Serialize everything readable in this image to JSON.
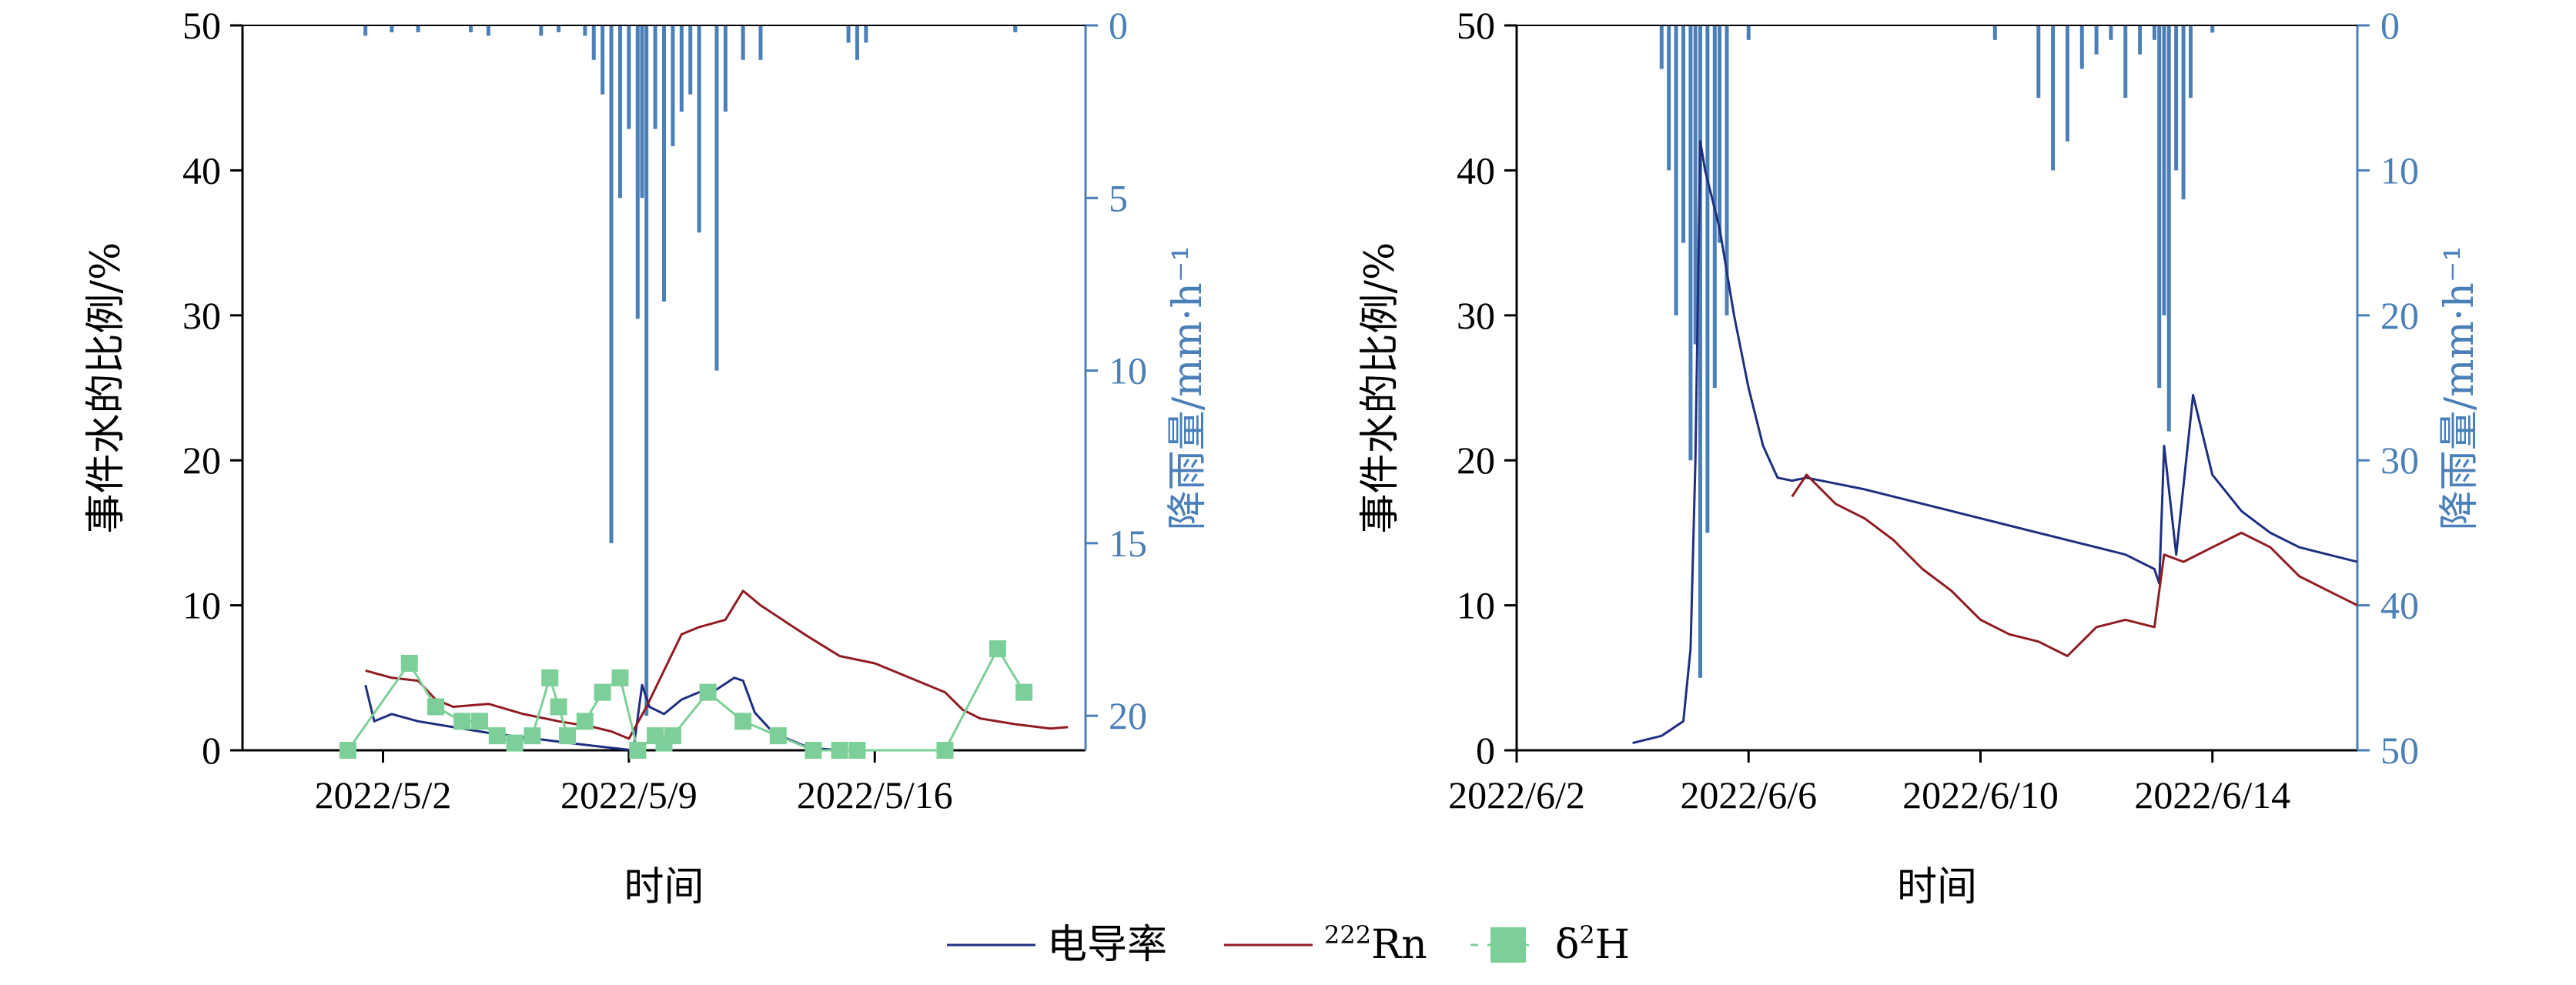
{
  "colors": {
    "conductivity": "#1f2f80",
    "radon": "#8f1d22",
    "isotope": "#7ccf98",
    "rain": "#4b7fb8",
    "axis": "#000000"
  },
  "legend": [
    {
      "key": "conductivity",
      "label": "电导率"
    },
    {
      "key": "radon",
      "label_sup": "222",
      "label": "Rn"
    },
    {
      "key": "isotope",
      "label_pre": "δ",
      "label_sup": "2",
      "label": "H"
    }
  ],
  "chart_data": [
    {
      "type": "line",
      "panel": "left",
      "xlabel": "时间",
      "ylabel": "事件水的比例/%",
      "y2label": "降雨量/mm·h⁻¹",
      "ylim": [
        0,
        50
      ],
      "y2lim": [
        21,
        0
      ],
      "y2_reversed": true,
      "xlim": [
        "2022-04-28",
        "2022-05-22"
      ],
      "xticks": [
        {
          "date": "2022-05-02",
          "label": "2022/5/2"
        },
        {
          "date": "2022-05-09",
          "label": "2022/5/9"
        },
        {
          "date": "2022-05-16",
          "label": "2022/5/16"
        }
      ],
      "yticks": [
        "0",
        "10",
        "20",
        "30",
        "40",
        "50"
      ],
      "y2ticks": [
        "0",
        "5",
        "10",
        "15",
        "20"
      ],
      "series": [
        {
          "key": "conductivity",
          "kind": "line",
          "x": [
            "2022-05-01 12:00",
            "2022-05-01 18:00",
            "2022-05-02 06:00",
            "2022-05-03 00:00",
            "2022-05-04 00:00",
            "2022-05-05 00:00",
            "2022-05-06 00:00",
            "2022-05-07 00:00",
            "2022-05-08 00:00",
            "2022-05-08 18:00",
            "2022-05-09 03:00",
            "2022-05-09 09:00",
            "2022-05-09 14:00",
            "2022-05-10 00:00",
            "2022-05-10 12:00",
            "2022-05-11 00:00",
            "2022-05-11 12:00",
            "2022-05-12 00:00",
            "2022-05-12 06:00",
            "2022-05-12 14:00",
            "2022-05-13 00:00",
            "2022-05-13 12:00",
            "2022-05-14 00:00",
            "2022-05-14 12:00",
            "2022-05-15 00:00"
          ],
          "y": [
            4.5,
            2.0,
            2.5,
            2.0,
            1.6,
            1.2,
            0.9,
            0.6,
            0.3,
            0.1,
            0.0,
            4.5,
            3.0,
            2.5,
            3.5,
            4.0,
            4.2,
            5.0,
            4.8,
            2.6,
            1.5,
            0.8,
            0.3,
            0.1,
            0.0
          ]
        },
        {
          "key": "radon",
          "kind": "line",
          "x": [
            "2022-05-01 12:00",
            "2022-05-02 06:00",
            "2022-05-03 00:00",
            "2022-05-03 12:00",
            "2022-05-04 00:00",
            "2022-05-05 00:00",
            "2022-05-06 00:00",
            "2022-05-07 00:00",
            "2022-05-08 00:00",
            "2022-05-08 12:00",
            "2022-05-09 00:00",
            "2022-05-09 12:00",
            "2022-05-10 00:00",
            "2022-05-10 12:00",
            "2022-05-11 00:00",
            "2022-05-11 18:00",
            "2022-05-12 06:00",
            "2022-05-12 18:00",
            "2022-05-13 12:00",
            "2022-05-14 00:00",
            "2022-05-15 00:00",
            "2022-05-16 00:00",
            "2022-05-17 00:00",
            "2022-05-18 00:00",
            "2022-05-18 12:00",
            "2022-05-19 00:00",
            "2022-05-20 00:00",
            "2022-05-21 00:00",
            "2022-05-21 12:00"
          ],
          "y": [
            5.5,
            5.0,
            4.8,
            3.5,
            3.0,
            3.2,
            2.5,
            2.0,
            1.6,
            1.3,
            0.8,
            3.0,
            5.5,
            8.0,
            8.5,
            9.0,
            11.0,
            10.0,
            8.8,
            8.0,
            6.5,
            6.0,
            5.0,
            4.0,
            2.8,
            2.2,
            1.8,
            1.5,
            1.6
          ]
        },
        {
          "key": "isotope",
          "kind": "line-marker",
          "x": [
            "2022-05-01 00:00",
            "2022-05-02 18:00",
            "2022-05-03 12:00",
            "2022-05-04 06:00",
            "2022-05-04 18:00",
            "2022-05-05 06:00",
            "2022-05-05 18:00",
            "2022-05-06 06:00",
            "2022-05-06 18:00",
            "2022-05-07 00:00",
            "2022-05-07 06:00",
            "2022-05-07 18:00",
            "2022-05-08 06:00",
            "2022-05-08 18:00",
            "2022-05-09 06:00",
            "2022-05-09 18:00",
            "2022-05-10 00:00",
            "2022-05-10 06:00",
            "2022-05-11 06:00",
            "2022-05-12 06:00",
            "2022-05-13 06:00",
            "2022-05-14 06:00",
            "2022-05-15 00:00",
            "2022-05-15 12:00",
            "2022-05-18 00:00",
            "2022-05-19 12:00",
            "2022-05-20 06:00"
          ],
          "y": [
            0.0,
            6.0,
            3.0,
            2.0,
            2.0,
            1.0,
            0.5,
            1.0,
            5.0,
            3.0,
            1.0,
            2.0,
            4.0,
            5.0,
            0.0,
            1.0,
            0.5,
            1.0,
            4.0,
            2.0,
            1.0,
            0.0,
            0.0,
            0.0,
            0.0,
            7.0,
            4.0
          ]
        },
        {
          "key": "rain",
          "kind": "bar",
          "axis": "y2",
          "x": [
            "2022-05-01 12:00",
            "2022-05-02 06:00",
            "2022-05-03 00:00",
            "2022-05-04 12:00",
            "2022-05-05 00:00",
            "2022-05-06 12:00",
            "2022-05-07 00:00",
            "2022-05-07 18:00",
            "2022-05-08 00:00",
            "2022-05-08 06:00",
            "2022-05-08 12:00",
            "2022-05-08 18:00",
            "2022-05-09 00:00",
            "2022-05-09 06:00",
            "2022-05-09 09:00",
            "2022-05-09 12:00",
            "2022-05-09 18:00",
            "2022-05-10 00:00",
            "2022-05-10 06:00",
            "2022-05-10 12:00",
            "2022-05-10 18:00",
            "2022-05-11 00:00",
            "2022-05-11 12:00",
            "2022-05-11 18:00",
            "2022-05-12 06:00",
            "2022-05-12 18:00",
            "2022-05-15 06:00",
            "2022-05-15 12:00",
            "2022-05-15 18:00",
            "2022-05-20 00:00"
          ],
          "y": [
            0.3,
            0.2,
            0.2,
            0.2,
            0.3,
            0.3,
            0.2,
            0.3,
            1.0,
            2.0,
            15.0,
            5.0,
            3.0,
            8.5,
            5.0,
            20.0,
            3.0,
            8.0,
            3.5,
            2.5,
            2.0,
            6.0,
            10.0,
            2.5,
            1.0,
            1.0,
            0.5,
            1.0,
            0.5,
            0.2
          ]
        }
      ]
    },
    {
      "type": "line",
      "panel": "right",
      "xlabel": "时间",
      "ylabel": "事件水的比例/%",
      "y2label": "降雨量/mm·h⁻¹",
      "ylim": [
        0,
        50
      ],
      "y2lim": [
        50,
        0
      ],
      "y2_reversed": true,
      "xlim": [
        "2022-06-02",
        "2022-06-16 12:00"
      ],
      "xticks": [
        {
          "date": "2022-06-02",
          "label": "2022/6/2"
        },
        {
          "date": "2022-06-06",
          "label": "2022/6/6"
        },
        {
          "date": "2022-06-10",
          "label": "2022/6/10"
        },
        {
          "date": "2022-06-14",
          "label": "2022/6/14"
        }
      ],
      "yticks": [
        "0",
        "10",
        "20",
        "30",
        "40",
        "50"
      ],
      "y2ticks": [
        "0",
        "10",
        "20",
        "30",
        "40",
        "50"
      ],
      "series": [
        {
          "key": "conductivity",
          "kind": "line",
          "x": [
            "2022-06-04 00:00",
            "2022-06-04 12:00",
            "2022-06-04 21:00",
            "2022-06-05 00:00",
            "2022-06-05 02:00",
            "2022-06-05 04:00",
            "2022-06-05 06:00",
            "2022-06-05 12:00",
            "2022-06-05 18:00",
            "2022-06-06 00:00",
            "2022-06-06 06:00",
            "2022-06-06 12:00",
            "2022-06-06 18:00",
            "2022-06-07 00:00",
            "2022-06-07 12:00",
            "2022-06-08 00:00",
            "2022-06-08 12:00",
            "2022-06-09 00:00",
            "2022-06-09 12:00",
            "2022-06-10 00:00",
            "2022-06-10 12:00",
            "2022-06-11 00:00",
            "2022-06-11 12:00",
            "2022-06-12 00:00",
            "2022-06-12 12:00",
            "2022-06-13 00:00",
            "2022-06-13 02:00",
            "2022-06-13 04:00",
            "2022-06-13 09:00",
            "2022-06-13 16:00",
            "2022-06-14 00:00",
            "2022-06-14 12:00",
            "2022-06-15 00:00",
            "2022-06-15 12:00",
            "2022-06-16 00:00",
            "2022-06-16 12:00"
          ],
          "y": [
            0.5,
            1.0,
            2.0,
            7.0,
            20.0,
            42.0,
            40.0,
            36.0,
            30.0,
            25.0,
            21.0,
            18.8,
            18.6,
            18.8,
            18.4,
            18.0,
            17.5,
            17.0,
            16.5,
            16.0,
            15.5,
            15.0,
            14.5,
            14.0,
            13.5,
            12.5,
            11.5,
            21.0,
            13.5,
            24.5,
            19.0,
            16.5,
            15.0,
            14.0,
            13.5,
            13.0
          ]
        },
        {
          "key": "radon",
          "kind": "line",
          "x": [
            "2022-06-06 18:00",
            "2022-06-07 00:00",
            "2022-06-07 12:00",
            "2022-06-08 00:00",
            "2022-06-08 12:00",
            "2022-06-09 00:00",
            "2022-06-09 12:00",
            "2022-06-10 00:00",
            "2022-06-10 12:00",
            "2022-06-11 00:00",
            "2022-06-11 12:00",
            "2022-06-12 00:00",
            "2022-06-12 12:00",
            "2022-06-13 00:00",
            "2022-06-13 04:00",
            "2022-06-13 12:00",
            "2022-06-14 00:00",
            "2022-06-14 12:00",
            "2022-06-15 00:00",
            "2022-06-15 12:00",
            "2022-06-16 00:00",
            "2022-06-16 12:00"
          ],
          "y": [
            17.5,
            19.0,
            17.0,
            16.0,
            14.5,
            12.5,
            11.0,
            9.0,
            8.0,
            7.5,
            6.5,
            8.5,
            9.0,
            8.5,
            13.5,
            13.0,
            14.0,
            15.0,
            14.0,
            12.0,
            11.0,
            10.0
          ]
        },
        {
          "key": "rain",
          "kind": "bar",
          "axis": "y2",
          "x": [
            "2022-06-04 12:00",
            "2022-06-04 15:00",
            "2022-06-04 18:00",
            "2022-06-04 21:00",
            "2022-06-05 00:00",
            "2022-06-05 02:00",
            "2022-06-05 04:00",
            "2022-06-05 07:00",
            "2022-06-05 10:00",
            "2022-06-05 12:00",
            "2022-06-05 15:00",
            "2022-06-06 00:00",
            "2022-06-10 06:00",
            "2022-06-11 00:00",
            "2022-06-11 06:00",
            "2022-06-11 12:00",
            "2022-06-11 18:00",
            "2022-06-12 00:00",
            "2022-06-12 06:00",
            "2022-06-12 12:00",
            "2022-06-12 18:00",
            "2022-06-13 00:00",
            "2022-06-13 02:00",
            "2022-06-13 04:00",
            "2022-06-13 06:00",
            "2022-06-13 09:00",
            "2022-06-13 12:00",
            "2022-06-13 15:00",
            "2022-06-14 00:00"
          ],
          "y": [
            3.0,
            10.0,
            20.0,
            15.0,
            30.0,
            22.0,
            45.0,
            35.0,
            25.0,
            15.0,
            20.0,
            1.0,
            1.0,
            5.0,
            10.0,
            8.0,
            3.0,
            2.0,
            1.0,
            5.0,
            2.0,
            1.0,
            25.0,
            20.0,
            28.0,
            10.0,
            12.0,
            5.0,
            0.5
          ]
        }
      ]
    }
  ]
}
